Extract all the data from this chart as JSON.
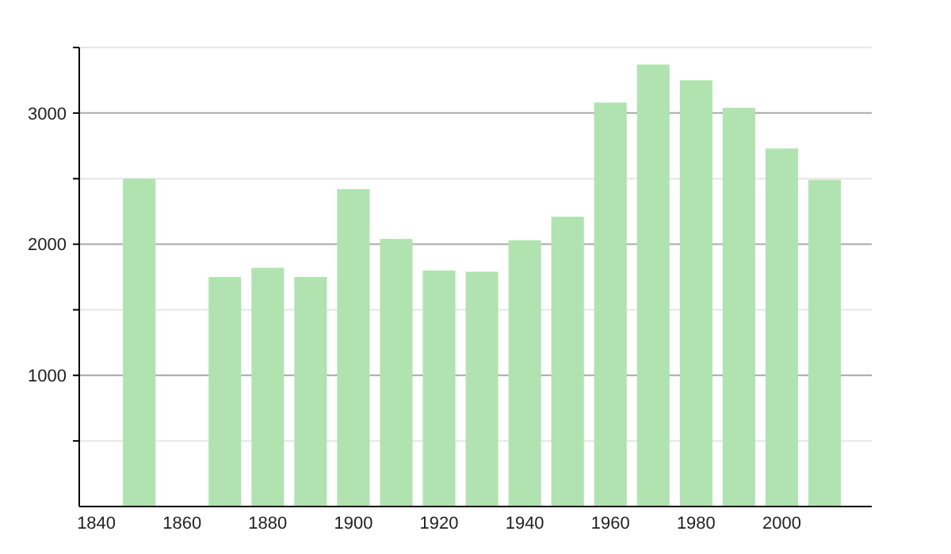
{
  "chart_data": {
    "type": "bar",
    "x": [
      1850,
      1870,
      1880,
      1890,
      1900,
      1910,
      1920,
      1930,
      1940,
      1950,
      1960,
      1970,
      1980,
      1990,
      2000,
      2010
    ],
    "values": [
      2500,
      1750,
      1820,
      1750,
      2420,
      2040,
      1800,
      1790,
      2030,
      2210,
      3080,
      3370,
      3250,
      3040,
      2730,
      2490
    ],
    "color": "#b0e3b0",
    "xlim": [
      1836,
      2021
    ],
    "xticks": [
      1840,
      1860,
      1880,
      1900,
      1920,
      1940,
      1960,
      1980,
      2000
    ],
    "ylim": [
      0,
      3500
    ],
    "yticks": [
      {
        "value": 500,
        "label": null
      },
      1000,
      {
        "value": 1500,
        "label": null
      },
      2000,
      {
        "value": 2500,
        "label": null
      },
      3000,
      {
        "value": 3500,
        "label": null
      }
    ],
    "grid": "y"
  }
}
